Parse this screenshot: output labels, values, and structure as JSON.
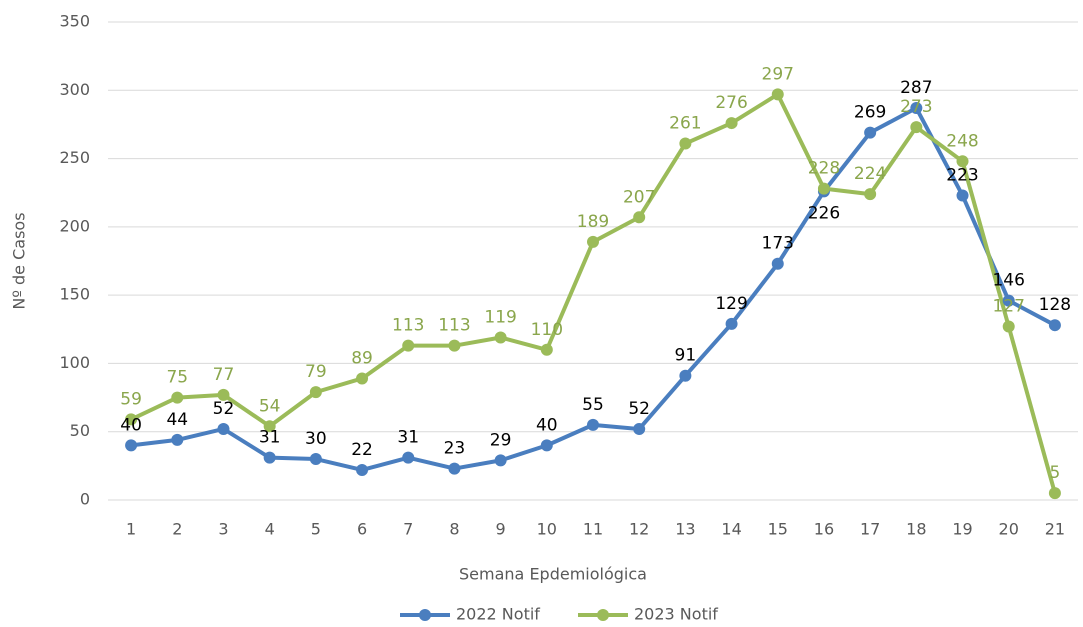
{
  "chart_data": {
    "type": "line",
    "x_label": "Semana Epdemiológica",
    "y_label": "Nº de Casos",
    "categories": [
      "1",
      "2",
      "3",
      "4",
      "5",
      "6",
      "7",
      "8",
      "9",
      "10",
      "11",
      "12",
      "13",
      "14",
      "15",
      "16",
      "17",
      "18",
      "19",
      "20",
      "21"
    ],
    "series": [
      {
        "name": "2022 Notif",
        "color": "#4a7ebf",
        "label_color": "#000000",
        "values": [
          40,
          44,
          52,
          31,
          30,
          22,
          31,
          23,
          29,
          40,
          55,
          52,
          91,
          129,
          173,
          226,
          269,
          287,
          223,
          146,
          128
        ]
      },
      {
        "name": "2023 Notif",
        "color": "#9bbb59",
        "label_color": "#8aa64c",
        "values": [
          59,
          75,
          77,
          54,
          79,
          89,
          113,
          113,
          119,
          110,
          189,
          207,
          261,
          276,
          297,
          228,
          224,
          273,
          248,
          127,
          5
        ]
      }
    ],
    "ylim": [
      0,
      350
    ],
    "yticks": [
      0,
      50,
      100,
      150,
      200,
      250,
      300,
      350
    ],
    "grid": true,
    "legend": "bottom"
  }
}
